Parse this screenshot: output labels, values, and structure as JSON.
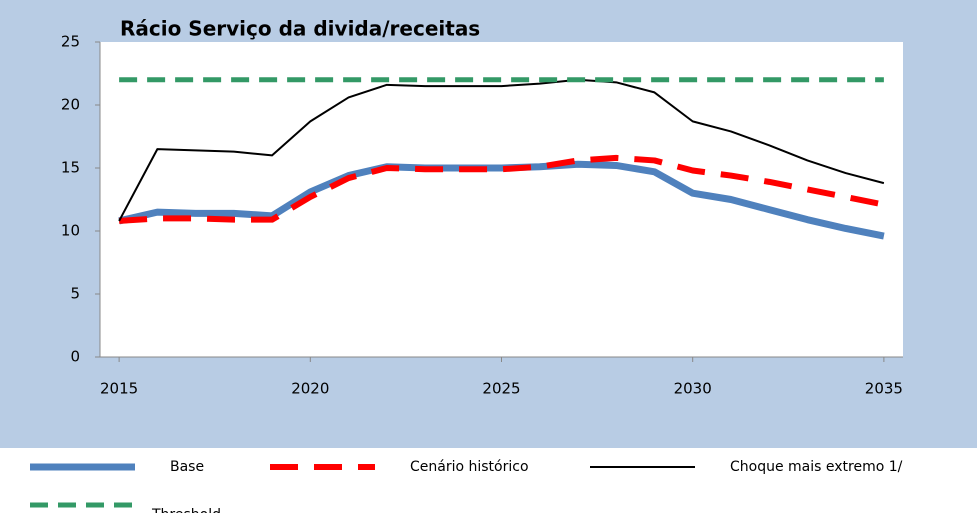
{
  "chart_data": {
    "type": "line",
    "title": "Rácio Serviço da divida/receitas",
    "x": [
      2015,
      2016,
      2017,
      2018,
      2019,
      2020,
      2021,
      2022,
      2023,
      2024,
      2025,
      2026,
      2027,
      2028,
      2029,
      2030,
      2031,
      2032,
      2033,
      2034,
      2035
    ],
    "series": [
      {
        "name": "Base",
        "color": "#4f81bd",
        "values": [
          10.8,
          11.5,
          11.4,
          11.4,
          11.2,
          13.1,
          14.4,
          15.1,
          15.0,
          15.0,
          15.0,
          15.1,
          15.3,
          15.2,
          14.7,
          13.0,
          12.5,
          11.7,
          10.9,
          10.2,
          9.6
        ]
      },
      {
        "name": "Cenário histórico",
        "color": "#ff0000",
        "values": [
          10.8,
          11.0,
          11.0,
          10.9,
          10.9,
          12.7,
          14.2,
          15.0,
          14.9,
          14.9,
          14.9,
          15.1,
          15.6,
          15.8,
          15.6,
          14.8,
          14.4,
          13.9,
          13.3,
          12.7,
          12.1
        ]
      },
      {
        "name": "Choque mais extremo  1/",
        "color": "#000000",
        "values": [
          10.8,
          16.5,
          16.4,
          16.3,
          16.0,
          18.7,
          20.6,
          21.6,
          21.5,
          21.5,
          21.5,
          21.7,
          22.0,
          21.8,
          21.0,
          18.7,
          17.9,
          16.8,
          15.6,
          14.6,
          13.8
        ]
      },
      {
        "name": "Threshold",
        "color": "#339966",
        "values": [
          22,
          22,
          22,
          22,
          22,
          22,
          22,
          22,
          22,
          22,
          22,
          22,
          22,
          22,
          22,
          22,
          22,
          22,
          22,
          22,
          22
        ]
      }
    ],
    "xlim": [
      2014.5,
      2035.5
    ],
    "xticks": [
      2015,
      2020,
      2025,
      2030,
      2035
    ],
    "ylim": [
      0,
      25
    ],
    "yticks": [
      0,
      5,
      10,
      15,
      20,
      25
    ]
  }
}
